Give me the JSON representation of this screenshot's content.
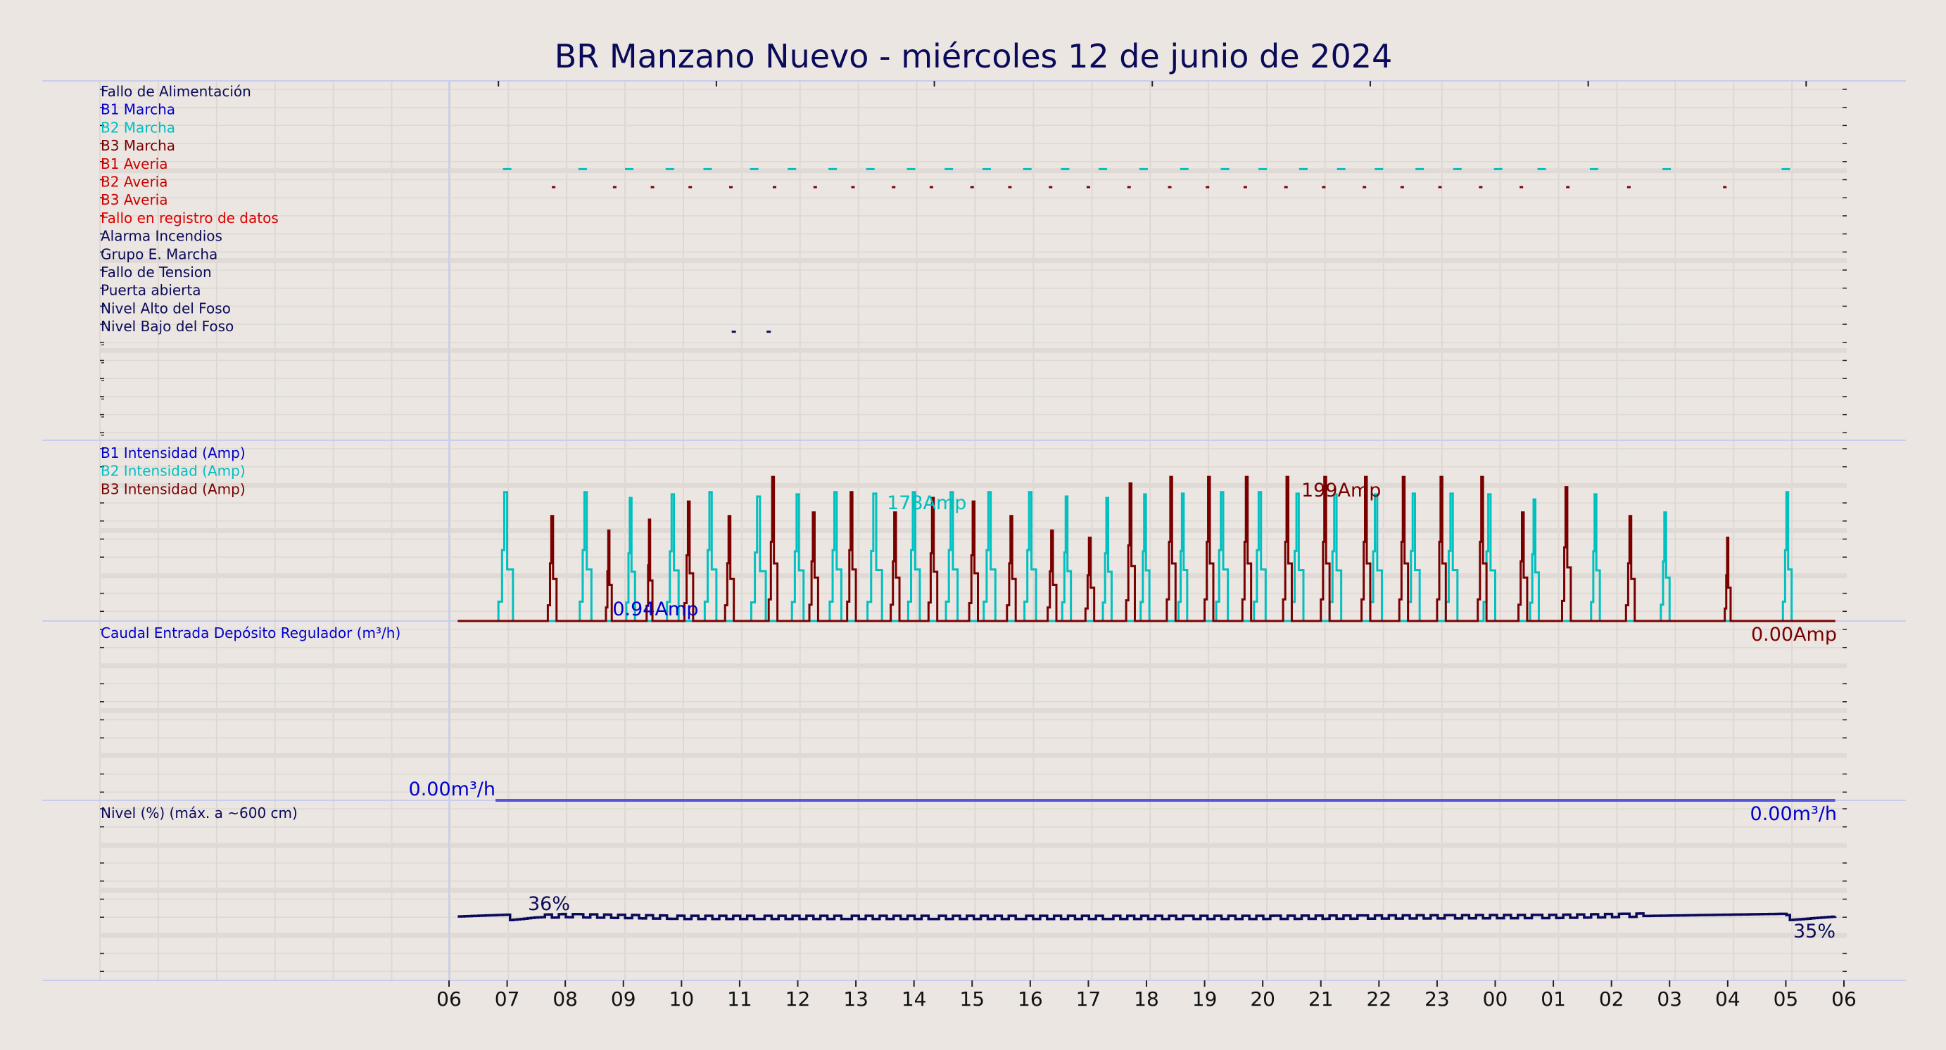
{
  "chart_data": [
    {
      "type": "line",
      "title": "BR Manzano Nuevo   -   miércoles 12 de junio de 2024",
      "x_axis": {
        "unit": "hour of day",
        "tick_labels": [
          "06",
          "07",
          "08",
          "09",
          "10",
          "11",
          "12",
          "13",
          "14",
          "15",
          "16",
          "17",
          "18",
          "19",
          "20",
          "21",
          "22",
          "23",
          "00",
          "01",
          "02",
          "03",
          "04",
          "05",
          "06"
        ],
        "range": [
          6,
          30
        ]
      },
      "panels": [
        {
          "name": "eventos",
          "type": "event-timeline",
          "legend": [
            {
              "label": "Fallo de Alimentación",
              "color": "#0a0a5a"
            },
            {
              "label": "B1 Marcha",
              "color": "#0000cc"
            },
            {
              "label": "B2 Marcha",
              "color": "#00c0c0"
            },
            {
              "label": "B3 Marcha",
              "color": "#7a0000"
            },
            {
              "label": "B1 Averia",
              "color": "#cc0000"
            },
            {
              "label": "B2 Averia",
              "color": "#cc0000"
            },
            {
              "label": "B3 Averia",
              "color": "#cc0000"
            },
            {
              "label": "Fallo en registro de datos",
              "color": "#dd0000"
            },
            {
              "label": "Alarma Incendios",
              "color": "#0a0a5a"
            },
            {
              "label": "Grupo E. Marcha",
              "color": "#0a0a5a"
            },
            {
              "label": "Fallo de Tension",
              "color": "#0a0a5a"
            },
            {
              "label": "Puerta abierta",
              "color": "#0a0a5a"
            },
            {
              "label": "Nivel Alto del Foso",
              "color": "#0a0a5a"
            },
            {
              "label": "Nivel Bajo del Foso",
              "color": "#0a0a5a"
            }
          ],
          "events": [
            {
              "row": 2,
              "times": [
                7.0,
                8.3,
                9.1,
                9.8,
                10.45,
                11.25,
                11.9,
                12.6,
                13.25,
                13.95,
                14.6,
                15.25,
                15.95,
                16.6,
                17.25,
                17.95,
                18.65,
                19.35,
                20.0,
                20.7,
                21.35,
                22.0,
                22.7,
                23.35,
                24.05,
                24.8,
                25.7,
                26.95,
                29.0
              ]
            },
            {
              "row": 3,
              "times": [
                7.8,
                8.85,
                9.5,
                10.15,
                10.85,
                11.6,
                12.3,
                12.95,
                13.65,
                14.3,
                15.0,
                15.65,
                16.35,
                17.0,
                17.7,
                18.4,
                19.05,
                19.7,
                20.4,
                21.05,
                21.75,
                22.4,
                23.05,
                23.75,
                24.45,
                25.25,
                26.3,
                27.95
              ]
            },
            {
              "row": 11,
              "times": [
                10.9,
                11.5
              ]
            }
          ]
        },
        {
          "name": "intensidad",
          "type": "line",
          "legend": [
            {
              "label": "B1 Intensidad (Amp)",
              "color": "#0000cc"
            },
            {
              "label": "B2 Intensidad (Amp)",
              "color": "#00c0c0"
            },
            {
              "label": "B3 Intensidad (Amp)",
              "color": "#7a0000"
            }
          ],
          "ylim": [
            0,
            240
          ],
          "series": [
            {
              "name": "B2 Intensidad (Amp)",
              "color": "#00c0c0",
              "pulses": [
                [
                  6.85,
                  7.1,
                  178
                ],
                [
                  8.25,
                  8.45,
                  178
                ],
                [
                  9.05,
                  9.2,
                  170
                ],
                [
                  9.75,
                  9.95,
                  175
                ],
                [
                  10.4,
                  10.6,
                  178
                ],
                [
                  11.2,
                  11.45,
                  172
                ],
                [
                  11.9,
                  12.1,
                  175
                ],
                [
                  12.55,
                  12.75,
                  178
                ],
                [
                  13.2,
                  13.45,
                  176
                ],
                [
                  13.9,
                  14.1,
                  178
                ],
                [
                  14.55,
                  14.75,
                  178
                ],
                [
                  15.2,
                  15.4,
                  178
                ],
                [
                  15.9,
                  16.1,
                  178
                ],
                [
                  16.55,
                  16.7,
                  172
                ],
                [
                  17.25,
                  17.4,
                  170
                ],
                [
                  17.9,
                  18.05,
                  175
                ],
                [
                  18.55,
                  18.7,
                  176
                ],
                [
                  19.2,
                  19.4,
                  178
                ],
                [
                  19.85,
                  20.05,
                  178
                ],
                [
                  20.5,
                  20.7,
                  176
                ],
                [
                  21.15,
                  21.35,
                  175
                ],
                [
                  21.85,
                  22.05,
                  175
                ],
                [
                  22.5,
                  22.7,
                  176
                ],
                [
                  23.15,
                  23.35,
                  176
                ],
                [
                  23.8,
                  24.0,
                  175
                ],
                [
                  24.6,
                  24.75,
                  168
                ],
                [
                  25.65,
                  25.8,
                  175
                ],
                [
                  26.85,
                  27.0,
                  150
                ],
                [
                  28.95,
                  29.1,
                  178
                ]
              ],
              "annotations": [
                {
                  "x": 14.5,
                  "value": 178,
                  "label": "178Amp"
                }
              ]
            },
            {
              "name": "B3 Intensidad (Amp)",
              "color": "#7a0000",
              "pulses": [
                [
                  7.7,
                  7.85,
                  145
                ],
                [
                  8.7,
                  8.8,
                  125
                ],
                [
                  9.4,
                  9.5,
                  140
                ],
                [
                  10.05,
                  10.2,
                  165
                ],
                [
                  10.75,
                  10.9,
                  145
                ],
                [
                  11.5,
                  11.65,
                  199
                ],
                [
                  12.2,
                  12.35,
                  150
                ],
                [
                  12.85,
                  13.0,
                  178
                ],
                [
                  13.6,
                  13.75,
                  150
                ],
                [
                  14.25,
                  14.4,
                  170
                ],
                [
                  14.95,
                  15.1,
                  165
                ],
                [
                  15.6,
                  15.75,
                  145
                ],
                [
                  16.3,
                  16.45,
                  125
                ],
                [
                  16.95,
                  17.1,
                  115
                ],
                [
                  17.65,
                  17.8,
                  190
                ],
                [
                  18.35,
                  18.5,
                  199
                ],
                [
                  19.0,
                  19.15,
                  199
                ],
                [
                  19.65,
                  19.8,
                  199
                ],
                [
                  20.35,
                  20.5,
                  199
                ],
                [
                  21.0,
                  21.15,
                  199
                ],
                [
                  21.7,
                  21.85,
                  199
                ],
                [
                  22.35,
                  22.5,
                  199
                ],
                [
                  23.0,
                  23.15,
                  199
                ],
                [
                  23.7,
                  23.85,
                  199
                ],
                [
                  24.4,
                  24.55,
                  150
                ],
                [
                  25.15,
                  25.3,
                  185
                ],
                [
                  26.25,
                  26.4,
                  145
                ],
                [
                  27.95,
                  28.05,
                  115
                ]
              ],
              "annotations": [
                {
                  "x": 20.3,
                  "value": 199,
                  "label": "199Amp"
                },
                {
                  "x": 29.8,
                  "value": 0,
                  "label": "0.00Amp"
                }
              ]
            },
            {
              "name": "B1 Intensidad (Amp)",
              "color": "#0000cc",
              "values": [],
              "annotations": [
                {
                  "x": 8.45,
                  "value": 0.94,
                  "label": "0.94Amp"
                }
              ]
            }
          ]
        },
        {
          "name": "caudal",
          "type": "line",
          "legend": [
            {
              "label": "Caudal Entrada Depósito Regulador (m³/h)",
              "color": "#0000cc"
            }
          ],
          "series": [
            {
              "name": "Caudal Entrada Depósito Regulador (m³/h)",
              "color": "#0000cc",
              "x": [
                6.8,
                29.85
              ],
              "y": [
                0,
                0
              ]
            }
          ],
          "annotations": [
            {
              "x": 6.8,
              "label": "0.00m³/h"
            },
            {
              "x": 29.85,
              "label": "0.00m³/h"
            }
          ]
        },
        {
          "name": "nivel",
          "type": "line",
          "legend": [
            {
              "label": "Nivel (%) (máx. a ~600 cm)",
              "color": "#0a0a5a"
            }
          ],
          "ylim": [
            0,
            100
          ],
          "series": [
            {
              "name": "Nivel (%) (máx. a ~600 cm)",
              "color": "#0a0a5a",
              "x": [
                6.15,
                7.0,
                7.05,
                7.5,
                8.0,
                10.0,
                15.0,
                20.0,
                25.0,
                27.0,
                28.0,
                29.0,
                29.05,
                29.85
              ],
              "y": [
                35.5,
                36.5,
                33.5,
                35.0,
                35.5,
                34.5,
                34.5,
                34.5,
                35.0,
                36.0,
                36.5,
                37.0,
                33.5,
                35.5
              ]
            }
          ],
          "annotations": [
            {
              "x": 7.4,
              "label": "36%"
            },
            {
              "x": 29.1,
              "label": "35%"
            }
          ]
        }
      ]
    }
  ]
}
